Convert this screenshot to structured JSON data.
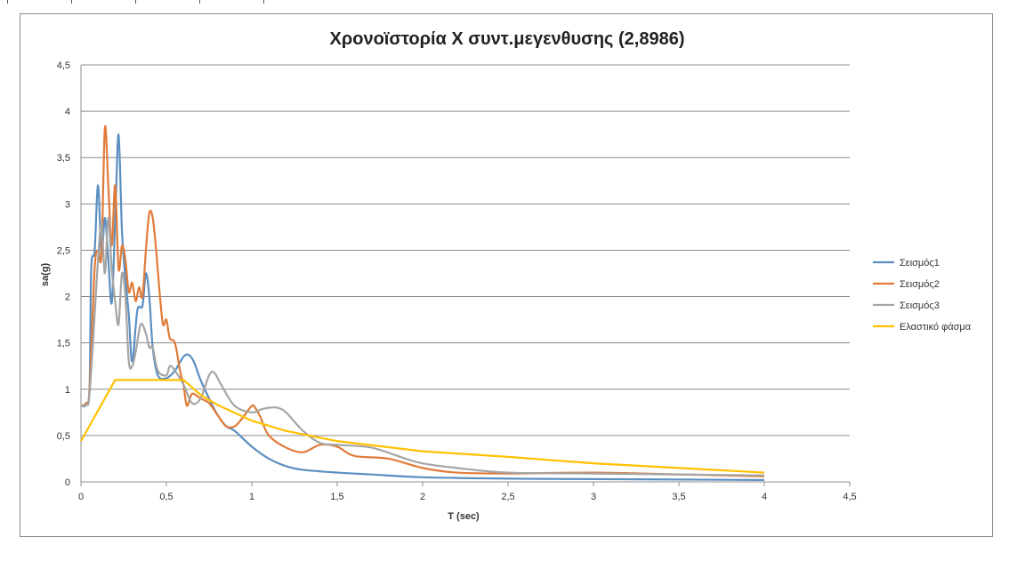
{
  "chart_data": {
    "type": "line",
    "title": "Χρονοϊστορία Χ συντ.μεγενθυσης (2,8986)",
    "xlabel": "T (sec)",
    "ylabel": "sa(g)",
    "xlim": [
      0,
      4.5
    ],
    "ylim": [
      0,
      4.5
    ],
    "x_ticks": [
      "0",
      "0,5",
      "1",
      "1,5",
      "2",
      "2,5",
      "3",
      "3,5",
      "4",
      "4,5"
    ],
    "y_ticks": [
      "0",
      "0,5",
      "1",
      "1,5",
      "2",
      "2,5",
      "3",
      "3,5",
      "4",
      "4,5"
    ],
    "grid": "horizontal",
    "legend_position": "right",
    "series": [
      {
        "name": "Σεισμός1",
        "color": "#5b8fc1",
        "points": [
          [
            0,
            0.82
          ],
          [
            0.03,
            0.83
          ],
          [
            0.05,
            1.0
          ],
          [
            0.06,
            2.3
          ],
          [
            0.08,
            2.5
          ],
          [
            0.1,
            3.2
          ],
          [
            0.12,
            2.45
          ],
          [
            0.14,
            2.85
          ],
          [
            0.16,
            2.4
          ],
          [
            0.18,
            1.93
          ],
          [
            0.2,
            2.8
          ],
          [
            0.22,
            3.75
          ],
          [
            0.24,
            2.7
          ],
          [
            0.26,
            2.2
          ],
          [
            0.28,
            1.8
          ],
          [
            0.3,
            1.3
          ],
          [
            0.33,
            1.85
          ],
          [
            0.36,
            1.9
          ],
          [
            0.38,
            2.25
          ],
          [
            0.4,
            2.0
          ],
          [
            0.42,
            1.45
          ],
          [
            0.45,
            1.15
          ],
          [
            0.5,
            1.12
          ],
          [
            0.55,
            1.2
          ],
          [
            0.6,
            1.35
          ],
          [
            0.63,
            1.37
          ],
          [
            0.66,
            1.3
          ],
          [
            0.7,
            1.1
          ],
          [
            0.75,
            0.9
          ],
          [
            0.8,
            0.72
          ],
          [
            0.85,
            0.6
          ],
          [
            0.9,
            0.55
          ],
          [
            1.0,
            0.38
          ],
          [
            1.1,
            0.25
          ],
          [
            1.2,
            0.17
          ],
          [
            1.3,
            0.13
          ],
          [
            1.5,
            0.1
          ],
          [
            1.7,
            0.08
          ],
          [
            2.0,
            0.05
          ],
          [
            2.5,
            0.035
          ],
          [
            3.0,
            0.03
          ],
          [
            3.5,
            0.025
          ],
          [
            4.0,
            0.02
          ]
        ]
      },
      {
        "name": "Σεισμός2",
        "color": "#e07b39",
        "points": [
          [
            0,
            0.82
          ],
          [
            0.03,
            0.85
          ],
          [
            0.05,
            1.0
          ],
          [
            0.08,
            2.3
          ],
          [
            0.1,
            2.5
          ],
          [
            0.12,
            2.45
          ],
          [
            0.14,
            3.82
          ],
          [
            0.16,
            3.2
          ],
          [
            0.18,
            2.55
          ],
          [
            0.2,
            3.2
          ],
          [
            0.22,
            2.3
          ],
          [
            0.24,
            2.55
          ],
          [
            0.26,
            2.4
          ],
          [
            0.28,
            2.05
          ],
          [
            0.3,
            2.15
          ],
          [
            0.32,
            1.95
          ],
          [
            0.34,
            2.1
          ],
          [
            0.36,
            2.0
          ],
          [
            0.38,
            2.5
          ],
          [
            0.4,
            2.9
          ],
          [
            0.42,
            2.85
          ],
          [
            0.44,
            2.5
          ],
          [
            0.46,
            2.05
          ],
          [
            0.48,
            1.7
          ],
          [
            0.5,
            1.75
          ],
          [
            0.52,
            1.55
          ],
          [
            0.55,
            1.5
          ],
          [
            0.58,
            1.2
          ],
          [
            0.6,
            1.05
          ],
          [
            0.62,
            0.82
          ],
          [
            0.65,
            0.95
          ],
          [
            0.7,
            0.9
          ],
          [
            0.75,
            0.85
          ],
          [
            0.8,
            0.72
          ],
          [
            0.85,
            0.6
          ],
          [
            0.9,
            0.6
          ],
          [
            0.95,
            0.7
          ],
          [
            1.0,
            0.82
          ],
          [
            1.02,
            0.8
          ],
          [
            1.05,
            0.7
          ],
          [
            1.1,
            0.5
          ],
          [
            1.2,
            0.37
          ],
          [
            1.3,
            0.32
          ],
          [
            1.4,
            0.4
          ],
          [
            1.5,
            0.38
          ],
          [
            1.6,
            0.28
          ],
          [
            1.8,
            0.25
          ],
          [
            2.0,
            0.15
          ],
          [
            2.2,
            0.1
          ],
          [
            2.5,
            0.09
          ],
          [
            3.0,
            0.1
          ],
          [
            3.5,
            0.08
          ],
          [
            4.0,
            0.06
          ]
        ]
      },
      {
        "name": "Σεισμός3",
        "color": "#a5a5a5",
        "points": [
          [
            0,
            0.82
          ],
          [
            0.03,
            0.83
          ],
          [
            0.05,
            0.95
          ],
          [
            0.08,
            1.8
          ],
          [
            0.1,
            2.4
          ],
          [
            0.12,
            2.8
          ],
          [
            0.14,
            2.25
          ],
          [
            0.16,
            2.85
          ],
          [
            0.18,
            2.3
          ],
          [
            0.2,
            1.95
          ],
          [
            0.22,
            1.7
          ],
          [
            0.24,
            2.25
          ],
          [
            0.26,
            2.0
          ],
          [
            0.28,
            1.3
          ],
          [
            0.3,
            1.25
          ],
          [
            0.32,
            1.4
          ],
          [
            0.35,
            1.7
          ],
          [
            0.38,
            1.6
          ],
          [
            0.4,
            1.45
          ],
          [
            0.42,
            1.45
          ],
          [
            0.45,
            1.2
          ],
          [
            0.5,
            1.15
          ],
          [
            0.52,
            1.25
          ],
          [
            0.55,
            1.2
          ],
          [
            0.6,
            1.05
          ],
          [
            0.65,
            0.85
          ],
          [
            0.7,
            0.9
          ],
          [
            0.75,
            1.15
          ],
          [
            0.78,
            1.18
          ],
          [
            0.82,
            1.05
          ],
          [
            0.9,
            0.82
          ],
          [
            1.0,
            0.75
          ],
          [
            1.05,
            0.78
          ],
          [
            1.1,
            0.8
          ],
          [
            1.15,
            0.8
          ],
          [
            1.2,
            0.75
          ],
          [
            1.3,
            0.55
          ],
          [
            1.4,
            0.42
          ],
          [
            1.5,
            0.4
          ],
          [
            1.7,
            0.37
          ],
          [
            1.9,
            0.25
          ],
          [
            2.0,
            0.2
          ],
          [
            2.2,
            0.15
          ],
          [
            2.5,
            0.1
          ],
          [
            3.0,
            0.09
          ],
          [
            3.5,
            0.08
          ],
          [
            4.0,
            0.07
          ]
        ]
      },
      {
        "name": "Ελαστικό φάσμα",
        "color": "#ffc000",
        "points": [
          [
            0,
            0.44
          ],
          [
            0.2,
            1.1
          ],
          [
            0.6,
            1.1
          ],
          [
            0.7,
            0.94
          ],
          [
            0.8,
            0.83
          ],
          [
            1.0,
            0.66
          ],
          [
            1.2,
            0.55
          ],
          [
            1.5,
            0.44
          ],
          [
            2.0,
            0.33
          ],
          [
            2.5,
            0.27
          ],
          [
            3.0,
            0.2
          ],
          [
            3.5,
            0.15
          ],
          [
            4.0,
            0.1
          ]
        ]
      }
    ]
  }
}
